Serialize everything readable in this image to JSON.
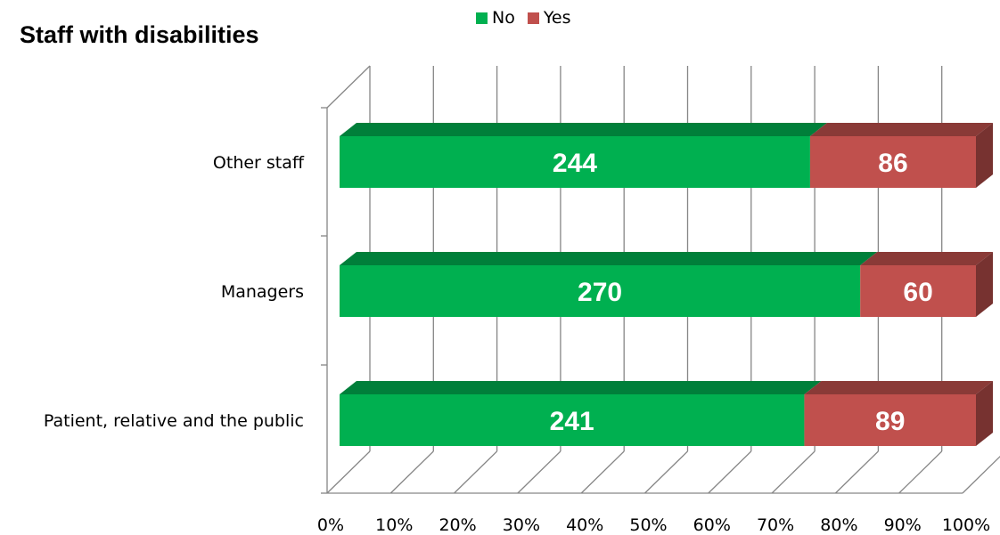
{
  "chart_data": {
    "type": "bar",
    "orientation": "horizontal",
    "stacked": "percent",
    "three_d": true,
    "title": "Staff with disabilities",
    "categories": [
      "Patient, relative and the public",
      "Managers",
      "Other staff"
    ],
    "series": [
      {
        "name": "No",
        "color": "#00b050",
        "values": [
          241,
          270,
          244
        ]
      },
      {
        "name": "Yes",
        "color": "#c0504d",
        "values": [
          89,
          60,
          86
        ]
      }
    ],
    "x_ticks": [
      "0%",
      "10%",
      "20%",
      "30%",
      "40%",
      "50%",
      "60%",
      "70%",
      "80%",
      "90%",
      "100%"
    ],
    "xlim": [
      0,
      100
    ],
    "grid": true,
    "legend": "top-center"
  }
}
